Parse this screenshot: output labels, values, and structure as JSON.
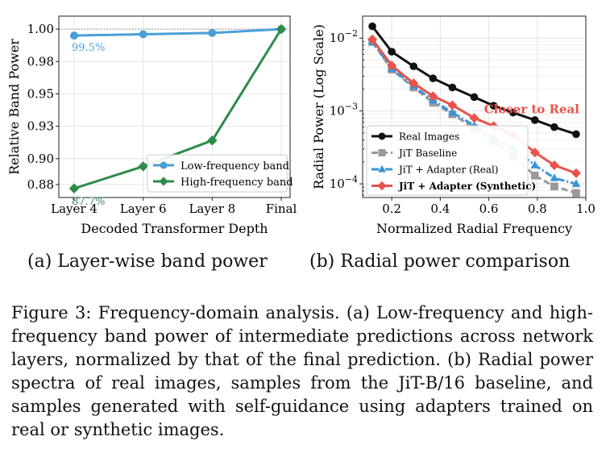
{
  "chart_data": [
    {
      "type": "line",
      "title": "",
      "xlabel": "Decoded Transformer Depth",
      "ylabel": "Relative Band Power",
      "categories": [
        "Layer 4",
        "Layer 6",
        "Layer 8",
        "Final"
      ],
      "ylim": [
        0.87,
        1.01
      ],
      "yticks": [
        "0.88",
        "0.90",
        "0.93",
        "0.95",
        "0.98",
        "1.00"
      ],
      "ytick_values": [
        0.88,
        0.9,
        0.925,
        0.95,
        0.975,
        1.0
      ],
      "grid": true,
      "legend_position": "lower-right",
      "reference_line": 1.0,
      "series": [
        {
          "name": "Low-frequency band",
          "color": "#4a9fd8",
          "marker": "circle",
          "values": [
            0.995,
            0.996,
            0.997,
            1.0
          ]
        },
        {
          "name": "High-frequency band",
          "color": "#2e8b4a",
          "marker": "diamond",
          "values": [
            0.877,
            0.894,
            0.914,
            1.0
          ]
        }
      ],
      "annotations": [
        {
          "text": "99.5%",
          "color": "#4a9fd8",
          "at_category": "Layer 4",
          "value": 0.995
        },
        {
          "text": "87.7%",
          "color": "#2e8b4a",
          "at_category": "Layer 4",
          "value": 0.877
        }
      ]
    },
    {
      "type": "line",
      "title": "",
      "xlabel": "Normalized Radial Frequency",
      "ylabel": "Radial Power (Log Scale)",
      "yscale": "log",
      "xlim": [
        0.08,
        1.0
      ],
      "xticks": [
        "0.2",
        "0.4",
        "0.6",
        "0.8",
        "1.0"
      ],
      "xtick_values": [
        0.2,
        0.4,
        0.6,
        0.8,
        1.0
      ],
      "ylim": [
        6.5e-05,
        0.02
      ],
      "ytick_values": [
        0.0001,
        0.001,
        0.01
      ],
      "ytick_bases": [
        "10",
        "10",
        "10"
      ],
      "ytick_exps": [
        "−4",
        "−3",
        "−2"
      ],
      "grid": true,
      "legend_position": "lower-left",
      "x": [
        0.12,
        0.2,
        0.29,
        0.37,
        0.45,
        0.54,
        0.62,
        0.7,
        0.79,
        0.87,
        0.96
      ],
      "series": [
        {
          "name": "Real Images",
          "color": "#111111",
          "marker": "circle",
          "dash": "solid",
          "bold": false,
          "values": [
            0.0145,
            0.0065,
            0.0041,
            0.0028,
            0.0021,
            0.00155,
            0.00118,
            0.00095,
            0.00075,
            0.0006,
            0.00048
          ]
        },
        {
          "name": "JiT Baseline",
          "color": "#9a9a9a",
          "marker": "square",
          "dash": "dashed",
          "bold": false,
          "values": [
            0.0088,
            0.0037,
            0.0021,
            0.0013,
            0.0009,
            0.00058,
            0.00038,
            0.00024,
            0.00013,
            9.2e-05,
            7.5e-05
          ]
        },
        {
          "name": "JiT + Adapter (Real)",
          "color": "#3a95d8",
          "marker": "triangle",
          "dash": "dashdot",
          "bold": false,
          "values": [
            0.009,
            0.0038,
            0.0022,
            0.0014,
            0.00095,
            0.00063,
            0.00043,
            0.00031,
            0.00018,
            0.00012,
            0.0001
          ]
        },
        {
          "name": "JiT + Adapter (Synthetic)",
          "color": "#e8534c",
          "marker": "diamond",
          "dash": "solid",
          "bold": true,
          "values": [
            0.0096,
            0.0042,
            0.0024,
            0.0016,
            0.0012,
            0.0008,
            0.00062,
            0.00047,
            0.00027,
            0.00018,
            0.00014
          ]
        }
      ],
      "annotations": [
        {
          "text": "Closer to Real",
          "color": "#e8534c",
          "x": 0.78,
          "y": 0.00095
        }
      ]
    }
  ],
  "captions": {
    "a": "(a) Layer-wise band power",
    "b": "(b) Radial power comparison"
  },
  "figure_caption": "Figure 3: Frequency-domain analysis. (a) Low-frequency and high-frequency band power of intermediate predictions across network layers, normalized by that of the final prediction. (b) Radial power spectra of real images, samples from the JiT-B/16 baseline, and samples generated with self-guidance using adapters trained on real or synthetic images."
}
